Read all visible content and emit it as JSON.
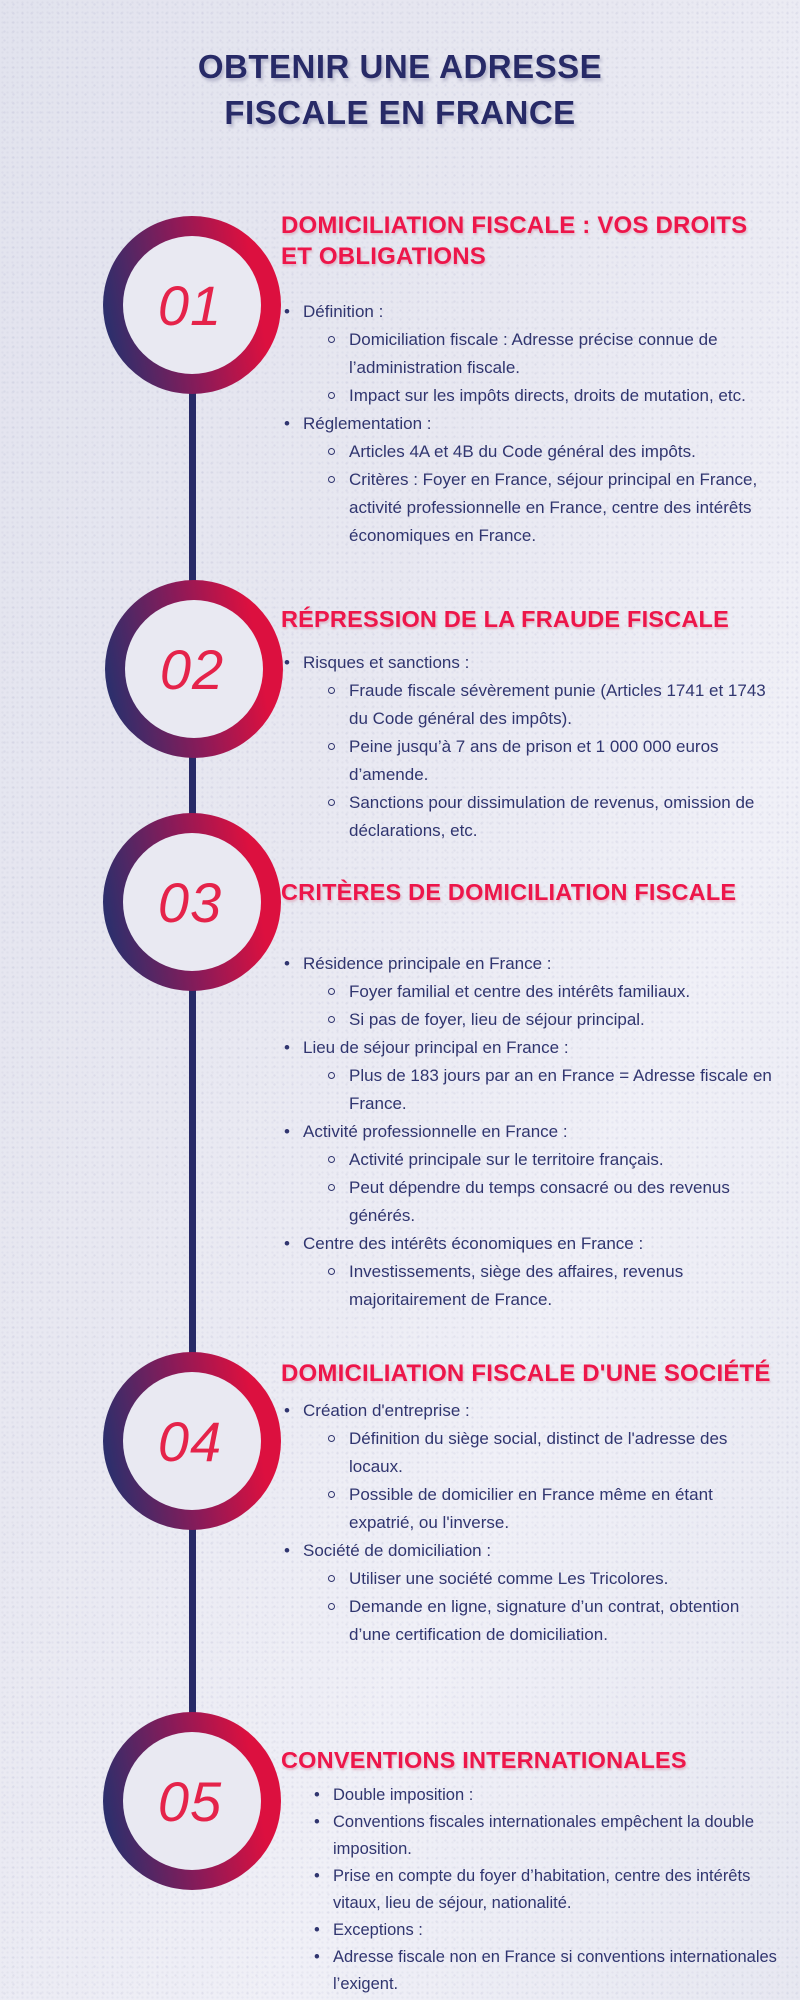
{
  "title": {
    "line1": "OBTENIR UNE ADRESSE",
    "line2": "FISCALE EN FRANCE"
  },
  "colors": {
    "accent_red": "#ed164a",
    "navy": "#272a67",
    "body_text": "#30356f",
    "background": "#e9e9f2",
    "circle_gradient_start": "#2d2f6c",
    "circle_gradient_end": "#dc103f"
  },
  "sections": [
    {
      "number": "01",
      "heading": "DOMICILIATION FISCALE : VOS DROITS ET OBLIGATIONS",
      "items": [
        {
          "level": 1,
          "text": "Définition :"
        },
        {
          "level": 2,
          "text": "Domiciliation fiscale : Adresse précise connue de l’administration fiscale."
        },
        {
          "level": 2,
          "text": "Impact sur les impôts directs, droits de mutation, etc."
        },
        {
          "level": 1,
          "text": "Réglementation :"
        },
        {
          "level": 2,
          "text": "Articles 4A et 4B du Code général des impôts."
        },
        {
          "level": 2,
          "text": "Critères : Foyer en France, séjour principal en France, activité professionnelle en France, centre des intérêts économiques en France."
        }
      ]
    },
    {
      "number": "02",
      "heading": "RÉPRESSION DE LA FRAUDE FISCALE",
      "items": [
        {
          "level": 1,
          "text": "Risques et sanctions :"
        },
        {
          "level": 2,
          "text": "Fraude fiscale sévèrement punie (Articles 1741 et 1743 du Code général des impôts)."
        },
        {
          "level": 2,
          "text": "Peine jusqu’à 7 ans de prison et 1 000 000 euros d’amende."
        },
        {
          "level": 2,
          "text": "Sanctions pour dissimulation de revenus, omission de déclarations, etc."
        }
      ]
    },
    {
      "number": "03",
      "heading": "CRITÈRES DE DOMICILIATION FISCALE",
      "items": [
        {
          "level": 1,
          "text": "Résidence principale en France :"
        },
        {
          "level": 2,
          "text": "Foyer familial et centre des intérêts familiaux."
        },
        {
          "level": 2,
          "text": "Si pas de foyer, lieu de séjour principal."
        },
        {
          "level": 1,
          "text": "Lieu de séjour principal en France :"
        },
        {
          "level": 2,
          "text": "Plus de 183 jours par an en France = Adresse fiscale en France."
        },
        {
          "level": 1,
          "text": "Activité professionnelle en France :"
        },
        {
          "level": 2,
          "text": "Activité principale sur le territoire français."
        },
        {
          "level": 2,
          "text": "Peut dépendre du temps consacré ou des revenus générés."
        },
        {
          "level": 1,
          "text": "Centre des intérêts économiques en France :"
        },
        {
          "level": 2,
          "text": "Investissements, siège des affaires, revenus majoritairement de France."
        }
      ]
    },
    {
      "number": "04",
      "heading": "DOMICILIATION FISCALE D'UNE SOCIÉTÉ",
      "items": [
        {
          "level": 1,
          "text": "Création d'entreprise :"
        },
        {
          "level": 2,
          "text": "Définition du siège social, distinct de l'adresse des locaux."
        },
        {
          "level": 2,
          "text": "Possible de domicilier en France même en étant expatrié, ou l'inverse."
        },
        {
          "level": 1,
          "text": "Société de domiciliation :"
        },
        {
          "level": 2,
          "text": "Utiliser une société comme Les Tricolores."
        },
        {
          "level": 2,
          "text": "Demande en ligne, signature d’un contrat, obtention d’une certification de domiciliation."
        }
      ]
    },
    {
      "number": "05",
      "heading": "CONVENTIONS INTERNATIONALES",
      "items": [
        {
          "level": 1,
          "text": "Double imposition :"
        },
        {
          "level": 1,
          "text": "Conventions fiscales internationales empêchent la double imposition."
        },
        {
          "level": 1,
          "text": "Prise en compte du foyer d’habitation, centre des intérêts vitaux, lieu de séjour, nationalité."
        },
        {
          "level": 1,
          "text": "Exceptions :"
        },
        {
          "level": 1,
          "text": "Adresse fiscale non en France si conventions internationales l’exigent."
        }
      ]
    }
  ]
}
